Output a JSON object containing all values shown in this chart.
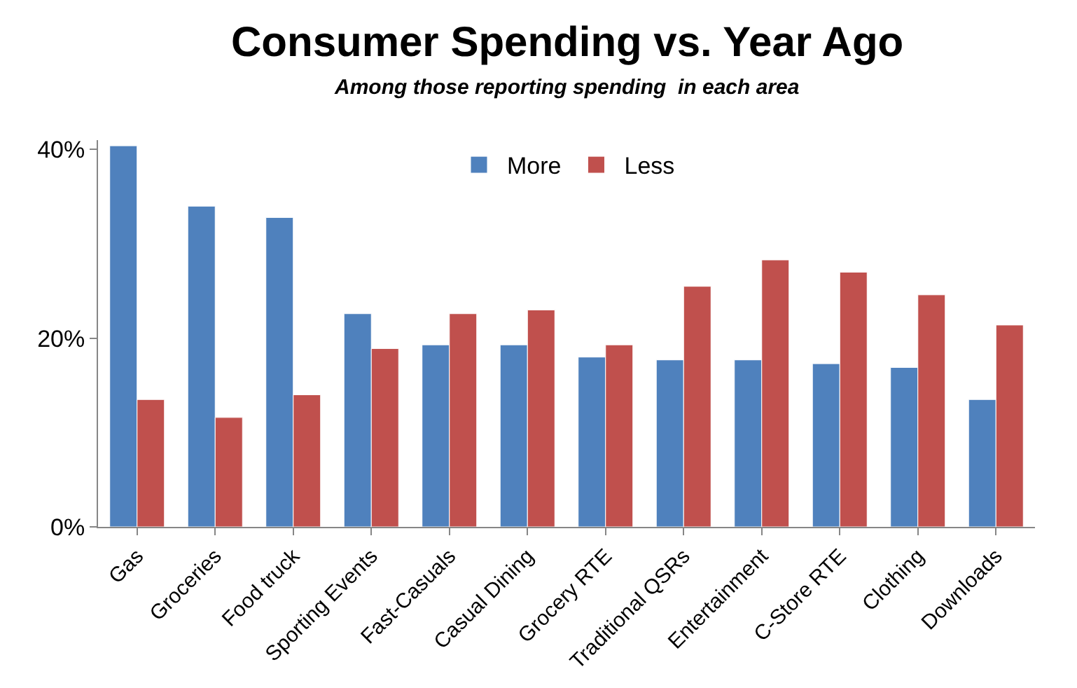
{
  "chart_data": {
    "type": "bar",
    "title": "Consumer Spending vs. Year Ago",
    "subtitle": "Among those reporting spending  in each area",
    "categories": [
      "Gas",
      "Groceries",
      "Food truck",
      "Sporting Events",
      "Fast-Casuals",
      "Casual Dining",
      "Grocery RTE",
      "Traditional QSRs",
      "Entertainment",
      "C-Store RTE",
      "Clothing",
      "Downloads"
    ],
    "series": [
      {
        "name": "More",
        "color": "#4f81bd",
        "values": [
          40.4,
          34.0,
          32.8,
          22.6,
          19.3,
          19.3,
          18.0,
          17.7,
          17.7,
          17.3,
          16.9,
          13.5
        ]
      },
      {
        "name": "Less",
        "color": "#c0504d",
        "values": [
          13.5,
          11.6,
          14.0,
          18.9,
          22.6,
          23.0,
          19.3,
          25.5,
          28.3,
          27.0,
          24.6,
          21.4
        ]
      }
    ],
    "ylim": [
      0,
      41
    ],
    "yticks": [
      {
        "value": 0,
        "label": "0%"
      },
      {
        "value": 20,
        "label": "20%"
      },
      {
        "value": 40,
        "label": "40%"
      }
    ],
    "legend": "top"
  }
}
